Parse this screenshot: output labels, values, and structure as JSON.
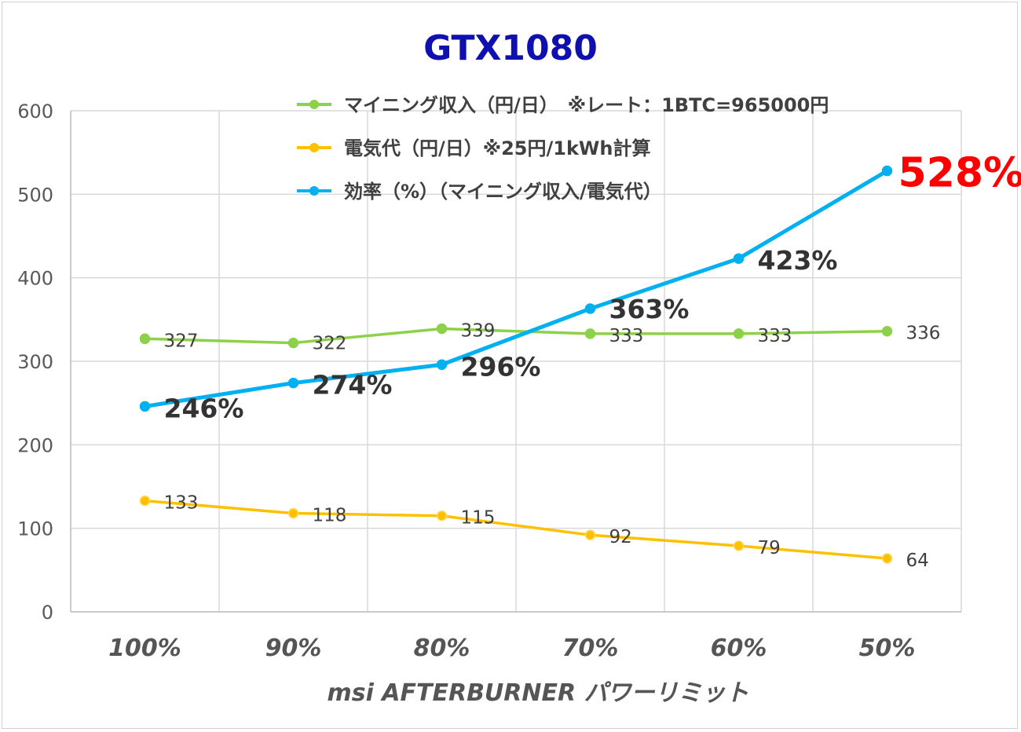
{
  "chart_data": {
    "type": "line",
    "title": "GTX1080",
    "xlabel": "msi AFTERBURNER パワーリミット",
    "ylabel": "",
    "categories": [
      "100%",
      "90%",
      "80%",
      "70%",
      "60%",
      "50%"
    ],
    "ylim": [
      0,
      600
    ],
    "yticks": [
      0,
      100,
      200,
      300,
      400,
      500,
      600
    ],
    "grid": true,
    "legend": "top-center",
    "series": [
      {
        "name": "マイニング収入（円/日）　※レート：1BTC=965000円",
        "color": "#8dd14a",
        "values": [
          327,
          322,
          339,
          333,
          333,
          336
        ],
        "labels": [
          "327",
          "322",
          "339",
          "333",
          "333",
          "336"
        ]
      },
      {
        "name": "電気代（円/日）※25円/1kWh計算",
        "color": "#ffc000",
        "values": [
          133,
          118,
          115,
          92,
          79,
          64
        ],
        "labels": [
          "133",
          "118",
          "115",
          "92",
          "79",
          "64"
        ]
      },
      {
        "name": "効率（%）（マイニング収入/電気代）",
        "color": "#00b0f0",
        "values": [
          246,
          274,
          296,
          363,
          423,
          528
        ],
        "labels": [
          "246%",
          "274%",
          "296%",
          "363%",
          "423%",
          "528%"
        ],
        "highlight_color": "#ff0000"
      }
    ]
  }
}
